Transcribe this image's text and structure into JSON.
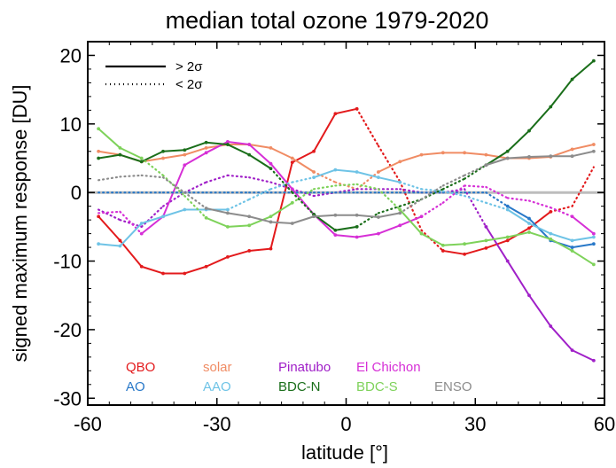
{
  "chart_data": {
    "type": "line",
    "title": "median total ozone 1979-2020",
    "xlabel": "latitude [°]",
    "ylabel": "signed maximum response [DU]",
    "xlim": [
      -60,
      60
    ],
    "ylim": [
      -31,
      22
    ],
    "xticks": [
      -60,
      -30,
      0,
      30,
      60
    ],
    "xtick_labels": [
      "-60",
      "-30",
      "0",
      "30",
      "60"
    ],
    "yticks": [
      -30,
      -20,
      -10,
      0,
      10,
      20
    ],
    "ytick_labels": [
      "-30",
      "-20",
      "-10",
      "0",
      "10",
      "20"
    ],
    "zero_line": true,
    "grid": false,
    "line_key": [
      {
        "label": "> 2σ",
        "style": "solid"
      },
      {
        "label": "< 2σ",
        "style": "dotted"
      }
    ],
    "legend_placement": "bottom-left",
    "series": [
      {
        "name": "QBO",
        "color": "#e31a1c",
        "x": [
          -57.5,
          -52.5,
          -47.5,
          -42.5,
          -37.5,
          -32.5,
          -27.5,
          -22.5,
          -17.5,
          -12.5,
          -7.5,
          -2.5,
          2.5,
          7.5,
          12.5,
          17.5,
          22.5,
          27.5,
          32.5,
          37.5,
          42.5,
          47.5,
          52.5,
          57.5
        ],
        "y": [
          -3.5,
          -7,
          -10.8,
          -11.8,
          -11.8,
          -10.8,
          -9.4,
          -8.5,
          -8.2,
          4.4,
          6,
          11.5,
          12.2,
          6.8,
          1.6,
          -5.5,
          -8.5,
          -9,
          -8.1,
          -7,
          -5.2,
          -2.8,
          -2,
          3.7
        ],
        "sig": [
          1,
          1,
          1,
          1,
          1,
          1,
          1,
          1,
          1,
          1,
          1,
          1,
          1,
          0,
          0,
          0,
          1,
          1,
          1,
          1,
          1,
          1,
          0,
          0
        ]
      },
      {
        "name": "solar",
        "color": "#f08c64",
        "x": [
          -57.5,
          -52.5,
          -47.5,
          -42.5,
          -37.5,
          -32.5,
          -27.5,
          -22.5,
          -17.5,
          -12.5,
          -7.5,
          -2.5,
          2.5,
          7.5,
          12.5,
          17.5,
          22.5,
          27.5,
          32.5,
          37.5,
          42.5,
          47.5,
          52.5,
          57.5
        ],
        "y": [
          6,
          5.5,
          4.5,
          5,
          5.5,
          6.5,
          7,
          7,
          6.5,
          5,
          3,
          1.5,
          0.5,
          3,
          4.5,
          5.5,
          5.8,
          5.8,
          5.5,
          5,
          5,
          5.2,
          6.3,
          7
        ],
        "sig": [
          1,
          1,
          1,
          1,
          1,
          1,
          1,
          1,
          1,
          1,
          1,
          0,
          0,
          1,
          1,
          1,
          1,
          1,
          1,
          1,
          1,
          1,
          1,
          1
        ]
      },
      {
        "name": "Pinatubo",
        "color": "#a020c8",
        "x": [
          -57.5,
          -52.5,
          -47.5,
          -42.5,
          -37.5,
          -32.5,
          -27.5,
          -22.5,
          -17.5,
          -12.5,
          -7.5,
          -2.5,
          2.5,
          7.5,
          12.5,
          17.5,
          22.5,
          27.5,
          32.5,
          37.5,
          42.5,
          47.5,
          52.5,
          57.5
        ],
        "y": [
          -2.5,
          -4,
          -5,
          -2,
          0,
          1.5,
          2.5,
          2.2,
          1.5,
          0.5,
          -0.5,
          0,
          0.5,
          0.5,
          0.5,
          0,
          0,
          0.5,
          -5,
          -10,
          -15,
          -19.5,
          -23,
          -24.5
        ],
        "sig": [
          0,
          0,
          0,
          0,
          0,
          0,
          0,
          0,
          0,
          0,
          0,
          0,
          0,
          0,
          0,
          0,
          0,
          0,
          1,
          1,
          1,
          1,
          1,
          1
        ]
      },
      {
        "name": "El Chichon",
        "color": "#d62fd6",
        "x": [
          -57.5,
          -52.5,
          -47.5,
          -42.5,
          -37.5,
          -32.5,
          -27.5,
          -22.5,
          -17.5,
          -12.5,
          -7.5,
          -2.5,
          2.5,
          7.5,
          12.5,
          17.5,
          22.5,
          27.5,
          32.5,
          37.5,
          42.5,
          47.5,
          52.5,
          57.5
        ],
        "y": [
          -3,
          -2.8,
          -6,
          -3.5,
          4,
          5.8,
          7.4,
          7,
          4.2,
          0.5,
          -3.2,
          -6.2,
          -6.5,
          -6,
          -4.8,
          -3.5,
          -1.5,
          1,
          0.8,
          -0.8,
          -1.2,
          -2.2,
          -3.5,
          -6
        ],
        "sig": [
          0,
          0,
          1,
          1,
          1,
          1,
          1,
          1,
          1,
          1,
          1,
          1,
          1,
          1,
          1,
          1,
          0,
          0,
          0,
          0,
          0,
          0,
          1,
          1
        ]
      },
      {
        "name": "AO",
        "color": "#2878c8",
        "x": [
          -57.5,
          -52.5,
          -47.5,
          -42.5,
          -37.5,
          -32.5,
          -27.5,
          -22.5,
          -17.5,
          -12.5,
          -7.5,
          -2.5,
          2.5,
          7.5,
          12.5,
          17.5,
          22.5,
          27.5,
          32.5,
          37.5,
          42.5,
          47.5,
          52.5,
          57.5
        ],
        "y": [
          0,
          0,
          0,
          0,
          0,
          0,
          0,
          0,
          0,
          0,
          0,
          0,
          0,
          0,
          0,
          0,
          0,
          0,
          0,
          -2,
          -3.8,
          -7,
          -8,
          -7.5
        ],
        "sig": [
          0,
          0,
          0,
          0,
          0,
          0,
          0,
          0,
          0,
          0,
          0,
          0,
          0,
          0,
          0,
          0,
          0,
          0,
          0,
          1,
          1,
          1,
          1,
          1
        ]
      },
      {
        "name": "AAO",
        "color": "#6ec3e6",
        "x": [
          -57.5,
          -52.5,
          -47.5,
          -42.5,
          -37.5,
          -32.5,
          -27.5,
          -22.5,
          -17.5,
          -12.5,
          -7.5,
          -2.5,
          2.5,
          7.5,
          12.5,
          17.5,
          22.5,
          27.5,
          32.5,
          37.5,
          42.5,
          47.5,
          52.5,
          57.5
        ],
        "y": [
          -7.5,
          -7.8,
          -4.5,
          -3.5,
          -2.5,
          -2.5,
          -2.5,
          -1,
          0.5,
          1.5,
          2.2,
          3.3,
          3,
          2.2,
          1.5,
          0.5,
          0.2,
          -0.5,
          -1.5,
          -2.5,
          -4.5,
          -6,
          -7,
          -6.5
        ],
        "sig": [
          1,
          1,
          1,
          1,
          1,
          1,
          1,
          0,
          0,
          0,
          1,
          1,
          1,
          1,
          1,
          0,
          0,
          0,
          0,
          1,
          1,
          1,
          1,
          1
        ]
      },
      {
        "name": "BDC-N",
        "color": "#1a6e1a",
        "x": [
          -57.5,
          -52.5,
          -47.5,
          -42.5,
          -37.5,
          -32.5,
          -27.5,
          -22.5,
          -17.5,
          -12.5,
          -7.5,
          -2.5,
          2.5,
          7.5,
          12.5,
          17.5,
          22.5,
          27.5,
          32.5,
          37.5,
          42.5,
          47.5,
          52.5,
          57.5
        ],
        "y": [
          5,
          5.5,
          4.5,
          6,
          6.2,
          7.3,
          7,
          5.5,
          3.5,
          0,
          -3.2,
          -5.5,
          -5,
          -3,
          -2,
          -1,
          0.5,
          2,
          4,
          6,
          9,
          12.5,
          16.5,
          19.2
        ],
        "sig": [
          1,
          1,
          1,
          1,
          1,
          1,
          1,
          1,
          1,
          0,
          1,
          1,
          1,
          0,
          0,
          0,
          0,
          0,
          1,
          1,
          1,
          1,
          1,
          1
        ]
      },
      {
        "name": "BDC-S",
        "color": "#7ed25a",
        "x": [
          -57.5,
          -52.5,
          -47.5,
          -42.5,
          -37.5,
          -32.5,
          -27.5,
          -22.5,
          -17.5,
          -12.5,
          -7.5,
          -2.5,
          2.5,
          7.5,
          12.5,
          17.5,
          22.5,
          27.5,
          32.5,
          37.5,
          42.5,
          47.5,
          52.5,
          57.5
        ],
        "y": [
          9.3,
          6.5,
          5,
          2.5,
          -0.5,
          -3.7,
          -5,
          -4.8,
          -3.5,
          -1.5,
          0.5,
          1,
          1.2,
          0.5,
          -2.5,
          -6,
          -7.7,
          -7.5,
          -7,
          -6.5,
          -5.8,
          -6.8,
          -8.5,
          -10.5
        ],
        "sig": [
          1,
          1,
          1,
          0,
          0,
          1,
          1,
          1,
          1,
          1,
          0,
          0,
          0,
          0,
          1,
          1,
          1,
          1,
          1,
          1,
          1,
          1,
          1,
          1
        ]
      },
      {
        "name": "ENSO",
        "color": "#8c8c8c",
        "x": [
          -57.5,
          -52.5,
          -47.5,
          -42.5,
          -37.5,
          -32.5,
          -27.5,
          -22.5,
          -17.5,
          -12.5,
          -7.5,
          -2.5,
          2.5,
          7.5,
          12.5,
          17.5,
          22.5,
          27.5,
          32.5,
          37.5,
          42.5,
          47.5,
          52.5,
          57.5
        ],
        "y": [
          1.8,
          2.3,
          2.5,
          2.2,
          0,
          -2.3,
          -3,
          -3.5,
          -4.3,
          -4.5,
          -3.5,
          -3.3,
          -3.3,
          -3.6,
          -3,
          -1,
          1,
          2.5,
          4,
          5,
          5.2,
          5.3,
          5.3,
          6
        ],
        "sig": [
          0,
          0,
          0,
          0,
          0,
          1,
          1,
          1,
          1,
          1,
          1,
          1,
          1,
          1,
          1,
          0,
          0,
          0,
          1,
          1,
          1,
          1,
          1,
          1
        ]
      }
    ]
  }
}
